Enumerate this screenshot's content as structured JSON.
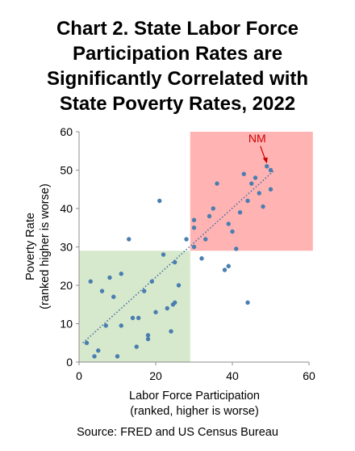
{
  "title_lines": [
    "Chart 2. State Labor Force",
    "Participation Rates are",
    "Significantly Correlated with",
    "State Poverty Rates, 2022"
  ],
  "source": "Source: FRED and US Census Bureau",
  "chart_data": {
    "type": "scatter",
    "xlabel_lines": [
      "Labor Force Participation",
      "(ranked, higher is worse)"
    ],
    "ylabel_lines": [
      "Poverty Rate",
      "(ranked higher is worse)"
    ],
    "xlim": [
      0,
      60
    ],
    "ylim": [
      0,
      60
    ],
    "xticks": [
      "0",
      "20",
      "40",
      "60"
    ],
    "yticks": [
      "0",
      "10",
      "20",
      "30",
      "40",
      "50",
      "60"
    ],
    "grid": false,
    "trendline": {
      "style": "dotted",
      "from": [
        1,
        5
      ],
      "to": [
        51,
        50
      ],
      "color": "#4A6FA5"
    },
    "regions": [
      {
        "name": "low-low",
        "x": [
          0,
          29
        ],
        "y": [
          0,
          29
        ],
        "color": "#D6E9CC"
      },
      {
        "name": "high-high",
        "x": [
          29,
          61
        ],
        "y": [
          29,
          60
        ],
        "color": "#FFB3B3"
      }
    ],
    "point_color": "#4A7EB0",
    "annotation": {
      "text": "NM",
      "point": [
        49,
        51
      ],
      "color": "#CC0000"
    },
    "points": [
      [
        2,
        5
      ],
      [
        3,
        21
      ],
      [
        4,
        1.5
      ],
      [
        5,
        3
      ],
      [
        6,
        18.5
      ],
      [
        7,
        9.5
      ],
      [
        8,
        22
      ],
      [
        9,
        17
      ],
      [
        10,
        1.5
      ],
      [
        11,
        9.5
      ],
      [
        11,
        23
      ],
      [
        13,
        32
      ],
      [
        14,
        11.5
      ],
      [
        15,
        4
      ],
      [
        15.5,
        11.5
      ],
      [
        17,
        18.5
      ],
      [
        18,
        7
      ],
      [
        18,
        6
      ],
      [
        19,
        21
      ],
      [
        20,
        13
      ],
      [
        21,
        42
      ],
      [
        22,
        28
      ],
      [
        23,
        14
      ],
      [
        24,
        8
      ],
      [
        24.5,
        15
      ],
      [
        25,
        26
      ],
      [
        25,
        15.5
      ],
      [
        26,
        20
      ],
      [
        28,
        32
      ],
      [
        30,
        37
      ],
      [
        30,
        35
      ],
      [
        30,
        30
      ],
      [
        32,
        27
      ],
      [
        33,
        32
      ],
      [
        34,
        38
      ],
      [
        35,
        40
      ],
      [
        36,
        46.5
      ],
      [
        38,
        24
      ],
      [
        39,
        36
      ],
      [
        39,
        25
      ],
      [
        40,
        34
      ],
      [
        41,
        29.5
      ],
      [
        42,
        39
      ],
      [
        43,
        49
      ],
      [
        44,
        42
      ],
      [
        45,
        46.5
      ],
      [
        46,
        48
      ],
      [
        47,
        44
      ],
      [
        48,
        40.5
      ],
      [
        49,
        51
      ],
      [
        50,
        45
      ],
      [
        50,
        50
      ],
      [
        44,
        15.5
      ]
    ]
  }
}
